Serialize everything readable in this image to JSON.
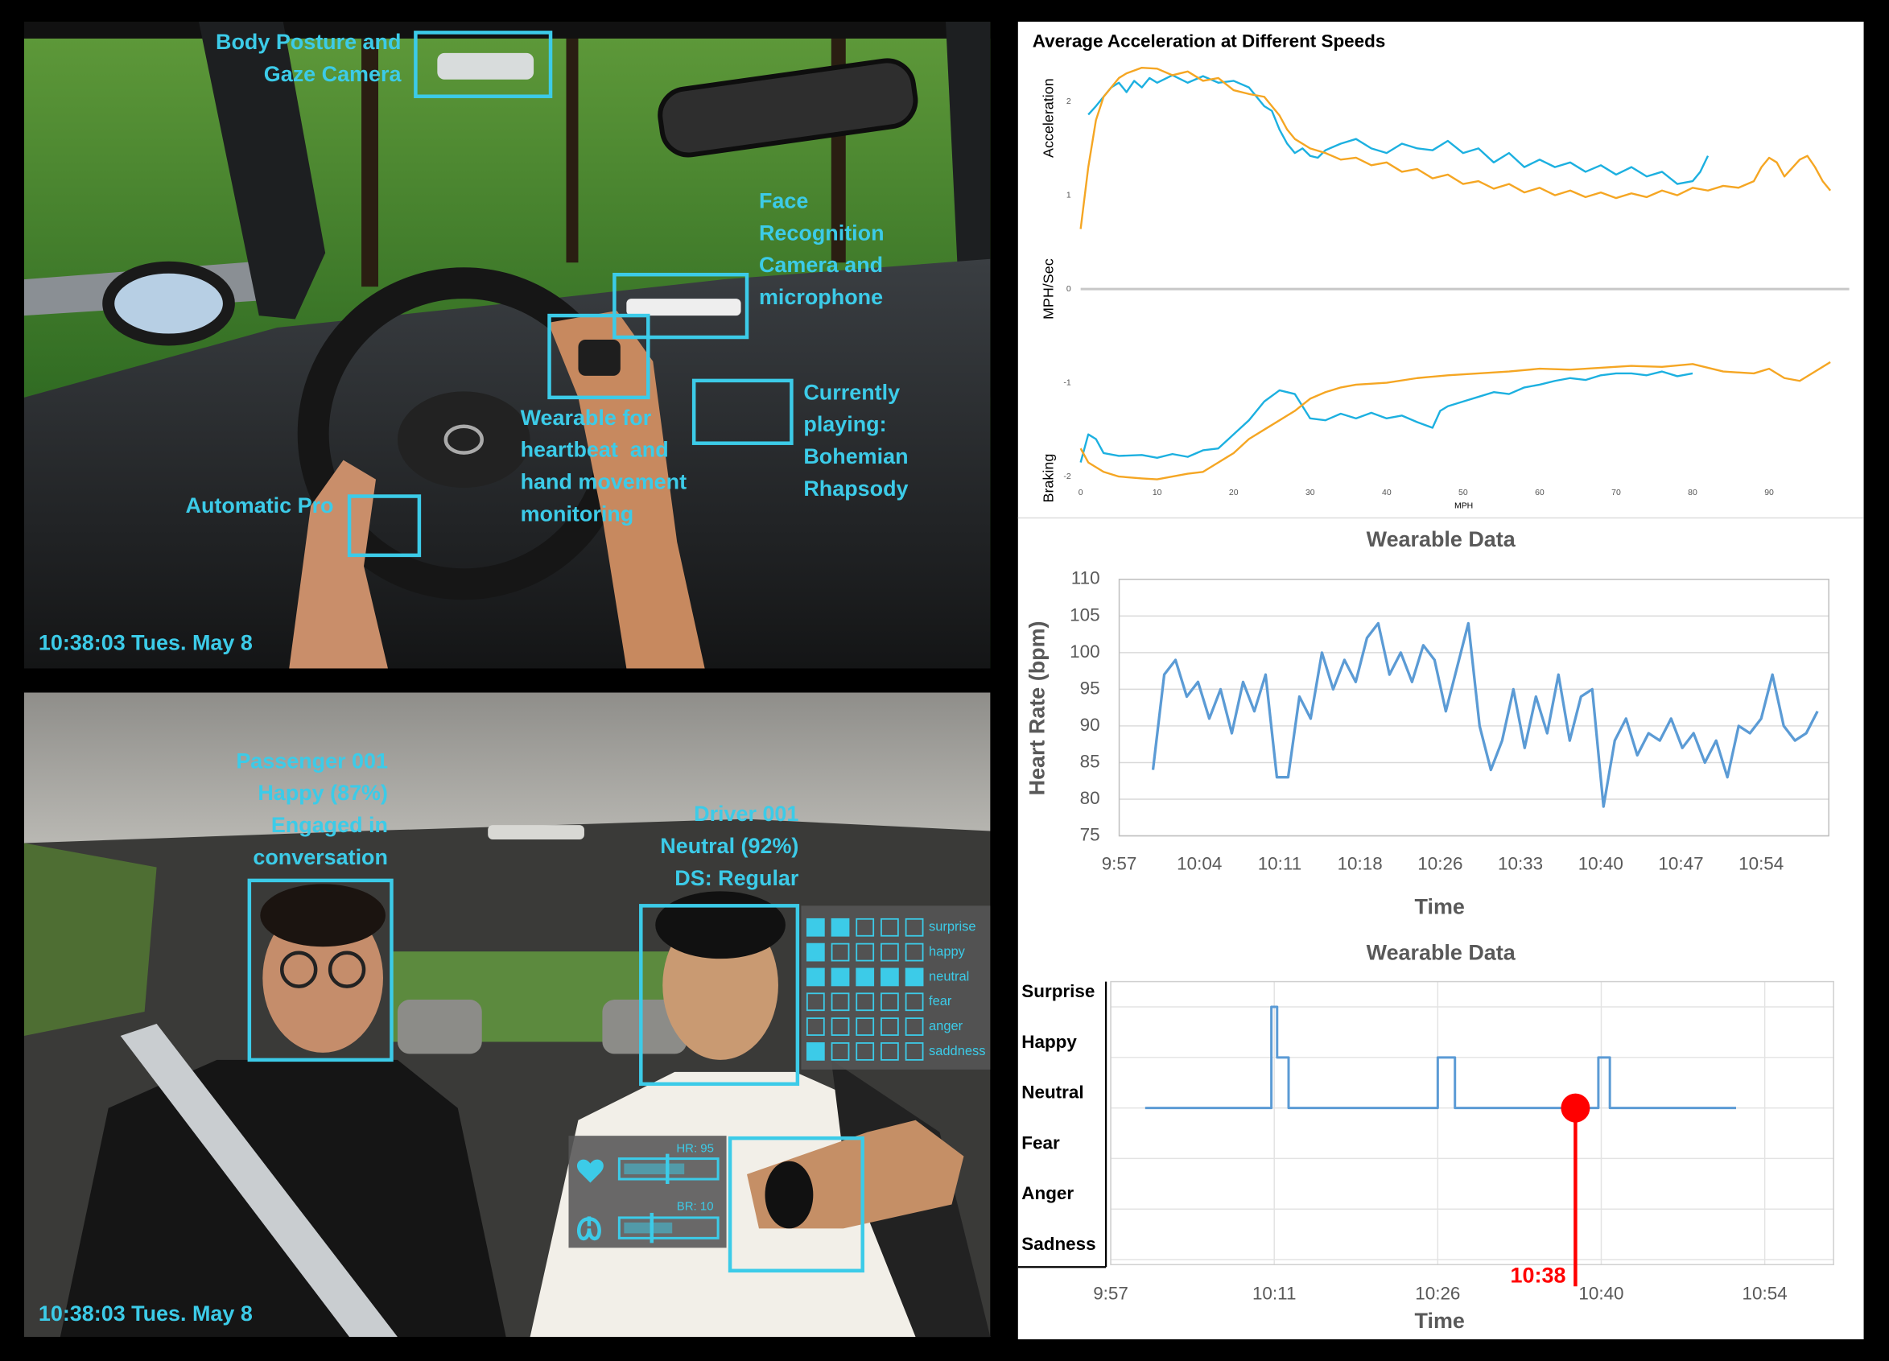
{
  "scene_top": {
    "annotations": [
      {
        "lines": [
          "Body Posture and",
          "Gaze Camera"
        ]
      },
      {
        "lines": [
          "Face",
          "Recognition",
          "Camera and",
          "microphone"
        ]
      },
      {
        "lines": [
          "Wearable for",
          "heartbeat  and",
          "hand movement",
          "monitoring"
        ]
      },
      {
        "lines": [
          "Currently",
          "playing:",
          "Bohemian",
          "Rhapsody"
        ]
      },
      {
        "lines": [
          "Automatic Pro"
        ]
      }
    ],
    "timestamp": "10:38:03 Tues. May 8"
  },
  "scene_bottom": {
    "passenger": [
      "Passenger 001",
      "Happy (87%)",
      "Engaged in",
      "conversation"
    ],
    "driver": [
      "Driver 001",
      "Neutral (92%)",
      "DS: Regular"
    ],
    "emotion_scale": 5,
    "emotions": [
      {
        "label": "surprise",
        "level": 2
      },
      {
        "label": "happy",
        "level": 1
      },
      {
        "label": "neutral",
        "level": 5
      },
      {
        "label": "fear",
        "level": 0
      },
      {
        "label": "anger",
        "level": 0
      },
      {
        "label": "saddness",
        "level": 1
      }
    ],
    "vitals": [
      "HR: 95",
      "BR: 10"
    ],
    "timestamp": "10:38:03 Tues. May 8"
  },
  "chart_data": [
    {
      "type": "line",
      "title": "Average Acceleration at Different Speeds",
      "xlabel": "MPH",
      "ylabels": [
        "Acceleration",
        "MPH/Sec",
        "Braking"
      ],
      "xlim": [
        0,
        100
      ],
      "ylim": [
        -2.12,
        2.44
      ],
      "xticks": [
        0,
        10,
        20,
        30,
        40,
        50,
        60,
        70,
        80,
        90
      ],
      "yticks": [
        -2,
        -1,
        0,
        1,
        2
      ],
      "zero_line": true,
      "series": [
        {
          "color": "#1cb0e0",
          "x": [
            1,
            2,
            3,
            4,
            5,
            6,
            7,
            8,
            9,
            10,
            12,
            14,
            16,
            18,
            20,
            22,
            23,
            24,
            25,
            26,
            27,
            28,
            29,
            30,
            31,
            32,
            34,
            36,
            38,
            40,
            42,
            44,
            46,
            48,
            50,
            52,
            54,
            56,
            58,
            60,
            62,
            64,
            66,
            68,
            70,
            72,
            74,
            76,
            78,
            80,
            81,
            82
          ],
          "values": [
            1.86,
            1.95,
            2.05,
            2.15,
            2.2,
            2.1,
            2.22,
            2.15,
            2.25,
            2.2,
            2.28,
            2.2,
            2.27,
            2.2,
            2.22,
            2.15,
            2.05,
            1.95,
            1.9,
            1.7,
            1.55,
            1.45,
            1.5,
            1.42,
            1.4,
            1.48,
            1.55,
            1.6,
            1.5,
            1.45,
            1.55,
            1.5,
            1.48,
            1.58,
            1.45,
            1.5,
            1.35,
            1.45,
            1.3,
            1.38,
            1.3,
            1.35,
            1.25,
            1.32,
            1.22,
            1.3,
            1.2,
            1.25,
            1.12,
            1.15,
            1.25,
            1.42
          ]
        },
        {
          "color": "#f5a623",
          "x": [
            0,
            1,
            2,
            3,
            4,
            5,
            6,
            8,
            10,
            12,
            14,
            16,
            18,
            20,
            22,
            24,
            26,
            27,
            28,
            30,
            32,
            34,
            36,
            38,
            40,
            42,
            44,
            46,
            48,
            50,
            52,
            54,
            56,
            58,
            60,
            62,
            64,
            66,
            68,
            70,
            72,
            74,
            76,
            78,
            80,
            82,
            84,
            86,
            88,
            89,
            90,
            91,
            92,
            94,
            95,
            96,
            97,
            98
          ],
          "values": [
            0.64,
            1.3,
            1.8,
            2.05,
            2.15,
            2.25,
            2.3,
            2.36,
            2.35,
            2.28,
            2.32,
            2.22,
            2.25,
            2.12,
            2.08,
            2.05,
            1.85,
            1.7,
            1.6,
            1.5,
            1.45,
            1.38,
            1.4,
            1.32,
            1.35,
            1.25,
            1.28,
            1.18,
            1.22,
            1.12,
            1.15,
            1.07,
            1.12,
            1.03,
            1.08,
            1.0,
            1.05,
            0.98,
            1.03,
            0.97,
            1.02,
            0.98,
            1.05,
            1.0,
            1.08,
            1.05,
            1.1,
            1.08,
            1.15,
            1.3,
            1.4,
            1.35,
            1.2,
            1.38,
            1.42,
            1.3,
            1.15,
            1.05
          ]
        },
        {
          "color": "#1cb0e0",
          "x": [
            0,
            1,
            2,
            3,
            5,
            8,
            10,
            12,
            14,
            16,
            18,
            20,
            22,
            24,
            26,
            28,
            29,
            30,
            32,
            34,
            36,
            38,
            40,
            42,
            44,
            46,
            47,
            48,
            50,
            52,
            54,
            56,
            58,
            60,
            62,
            64,
            66,
            68,
            70,
            72,
            74,
            76,
            78,
            80
          ],
          "values": [
            -1.85,
            -1.55,
            -1.6,
            -1.75,
            -1.78,
            -1.77,
            -1.8,
            -1.76,
            -1.79,
            -1.72,
            -1.7,
            -1.55,
            -1.4,
            -1.2,
            -1.08,
            -1.12,
            -1.25,
            -1.38,
            -1.4,
            -1.33,
            -1.38,
            -1.32,
            -1.38,
            -1.35,
            -1.42,
            -1.48,
            -1.3,
            -1.25,
            -1.2,
            -1.15,
            -1.1,
            -1.12,
            -1.05,
            -1.02,
            -0.98,
            -0.95,
            -0.97,
            -0.92,
            -0.9,
            -0.9,
            -0.92,
            -0.88,
            -0.93,
            -0.9
          ]
        },
        {
          "color": "#f5a623",
          "x": [
            0,
            1,
            3,
            5,
            8,
            10,
            12,
            14,
            16,
            18,
            20,
            22,
            24,
            26,
            28,
            30,
            32,
            34,
            36,
            40,
            44,
            48,
            52,
            56,
            60,
            64,
            68,
            72,
            76,
            80,
            84,
            88,
            90,
            92,
            94,
            96,
            98
          ],
          "values": [
            -1.7,
            -1.85,
            -1.95,
            -2.0,
            -2.02,
            -2.03,
            -2.0,
            -1.97,
            -1.95,
            -1.85,
            -1.75,
            -1.6,
            -1.5,
            -1.4,
            -1.3,
            -1.17,
            -1.1,
            -1.05,
            -1.02,
            -1.0,
            -0.95,
            -0.92,
            -0.9,
            -0.88,
            -0.85,
            -0.86,
            -0.84,
            -0.82,
            -0.83,
            -0.8,
            -0.88,
            -0.9,
            -0.85,
            -0.95,
            -0.98,
            -0.88,
            -0.78
          ]
        }
      ]
    },
    {
      "type": "line",
      "title": "Wearable Data",
      "xlabel": "Time",
      "ylabel": "Heart Rate (bpm)",
      "xlim": [
        597,
        660
      ],
      "ylim": [
        75,
        110
      ],
      "xticks": [
        {
          "value": 597,
          "label": "9:57"
        },
        {
          "value": 604.125,
          "label": "10:04"
        },
        {
          "value": 611.25,
          "label": "10:11"
        },
        {
          "value": 618.375,
          "label": "10:18"
        },
        {
          "value": 625.5,
          "label": "10:26"
        },
        {
          "value": 632.625,
          "label": "10:33"
        },
        {
          "value": 639.75,
          "label": "10:40"
        },
        {
          "value": 646.875,
          "label": "10:47"
        },
        {
          "value": 654,
          "label": "10:54"
        }
      ],
      "yticks": [
        75,
        80,
        85,
        90,
        95,
        100,
        105,
        110
      ],
      "grid": true,
      "series": [
        {
          "color": "#5b9bd5",
          "x": [
            600,
            601,
            602,
            603,
            604,
            605,
            606,
            607,
            608,
            609,
            610,
            611,
            612,
            613,
            614,
            615,
            616,
            617,
            618,
            619,
            620,
            621,
            622,
            623,
            624,
            625,
            626,
            627,
            628,
            629,
            630,
            631,
            632,
            633,
            634,
            635,
            636,
            637,
            638,
            639,
            640,
            641,
            642,
            643,
            644,
            645,
            646,
            647,
            648,
            649,
            650,
            651,
            652,
            653,
            654,
            655,
            656,
            657,
            658,
            659
          ],
          "values": [
            84,
            97,
            99,
            94,
            96,
            91,
            95,
            89,
            96,
            92,
            97,
            83,
            83,
            94,
            91,
            100,
            95,
            99,
            96,
            102,
            104,
            97,
            100,
            96,
            101,
            99,
            92,
            98,
            104,
            90,
            84,
            88,
            95,
            87,
            94,
            89,
            97,
            88,
            94,
            95,
            79,
            88,
            91,
            86,
            89,
            88,
            91,
            87,
            89,
            85,
            88,
            83,
            90,
            89,
            91,
            97,
            90,
            88,
            89,
            92
          ]
        }
      ]
    },
    {
      "type": "line",
      "title": "Wearable Data",
      "xlabel": "Time",
      "xlim": [
        597,
        660
      ],
      "ylim": [
        -0.1,
        5.5
      ],
      "xticks": [
        {
          "value": 597,
          "label": "9:57"
        },
        {
          "value": 611.25,
          "label": "10:11"
        },
        {
          "value": 625.5,
          "label": "10:26"
        },
        {
          "value": 639.75,
          "label": "10:40"
        },
        {
          "value": 654,
          "label": "10:54"
        }
      ],
      "yticks": [
        {
          "value": 5,
          "label": "Surprise"
        },
        {
          "value": 4,
          "label": "Happy"
        },
        {
          "value": 3,
          "label": "Neutral"
        },
        {
          "value": 2,
          "label": "Fear"
        },
        {
          "value": 1,
          "label": "Anger"
        },
        {
          "value": 0,
          "label": "Sadness"
        }
      ],
      "grid": true,
      "series": [
        {
          "color": "#5b9bd5",
          "x": [
            600,
            611,
            611,
            611.5,
            611.5,
            612.5,
            612.5,
            625.5,
            625.5,
            627,
            627,
            639.5,
            639.5,
            640.5,
            640.5,
            651.5
          ],
          "values": [
            3,
            3,
            5,
            5,
            4,
            4,
            3,
            3,
            4,
            4,
            3,
            3,
            4,
            4,
            3,
            3
          ]
        }
      ],
      "marker": {
        "x": {
          "value": 637.5,
          "label": "10:38"
        },
        "y": 3,
        "color": "#ff0000"
      }
    }
  ]
}
